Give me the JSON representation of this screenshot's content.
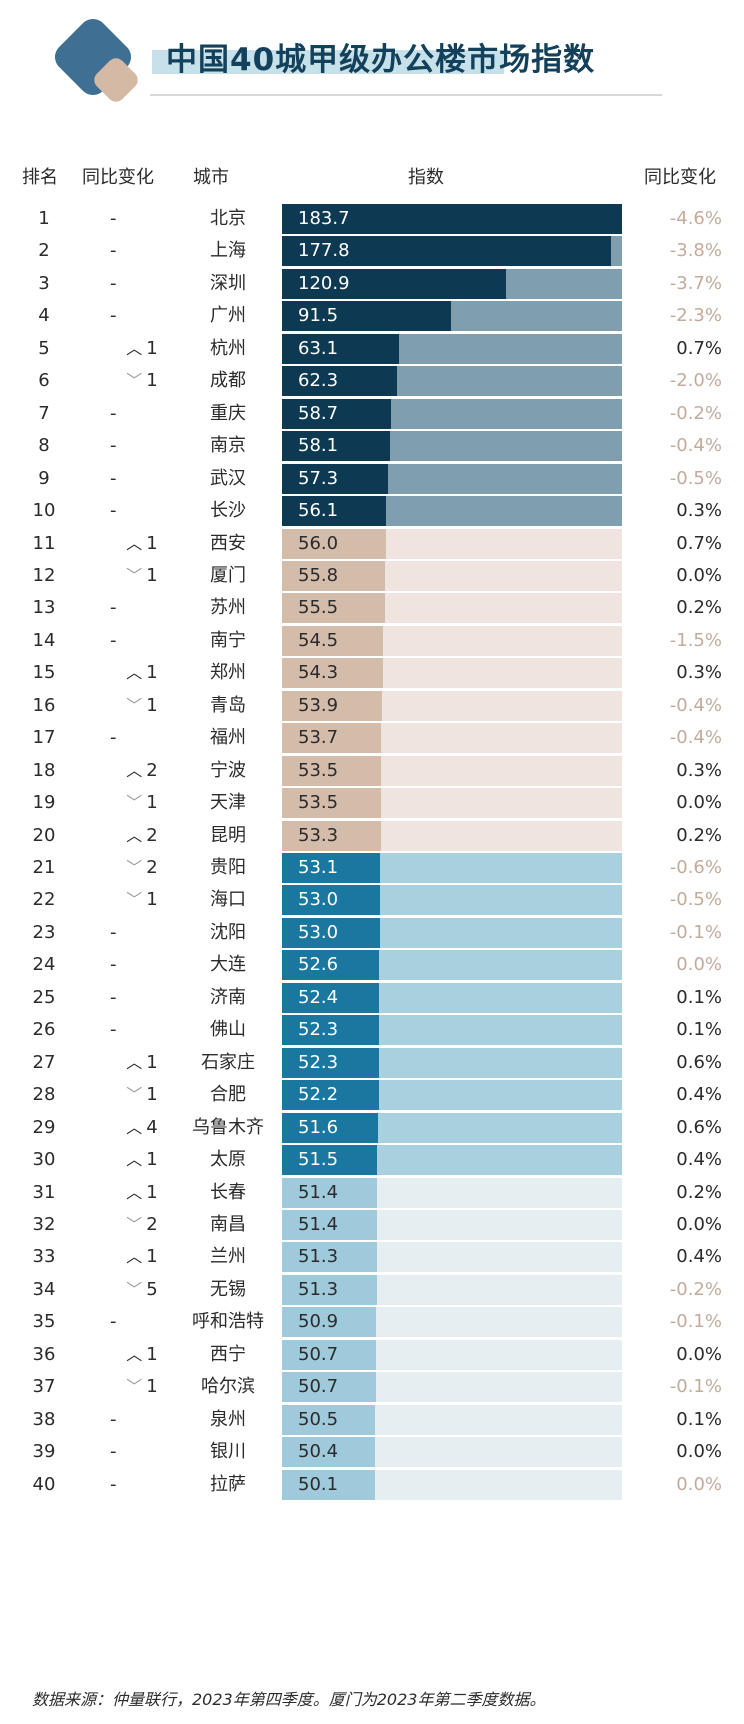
{
  "title": "中国40城甲级办公楼市场指数",
  "colors": {
    "title": "#13405a",
    "tier1_fill": "#0d3a52",
    "tier1_track": "#7f9eae",
    "tier2_fill": "#d4bcab",
    "tier2_track": "#efe4df",
    "tier3_fill": "#1a78a0",
    "tier3_track": "#a8d0de",
    "tier4_fill": "#9fcadb",
    "tier4_track": "#e6eef2",
    "negative_text": "#c3ab9c"
  },
  "headers": {
    "rank": "排名",
    "change": "同比变化",
    "city": "城市",
    "index": "指数",
    "yoy": "同比变化"
  },
  "chart_data": {
    "type": "bar",
    "xlim": [
      0,
      183.7
    ],
    "rows": [
      {
        "rank": "1",
        "change": "-",
        "city": "北京",
        "value": 183.7,
        "yoy": "-4.6%"
      },
      {
        "rank": "2",
        "change": "-",
        "city": "上海",
        "value": 177.8,
        "yoy": "-3.8%"
      },
      {
        "rank": "3",
        "change": "-",
        "city": "深圳",
        "value": 120.9,
        "yoy": "-3.7%"
      },
      {
        "rank": "4",
        "change": "-",
        "city": "广州",
        "value": 91.5,
        "yoy": "-2.3%"
      },
      {
        "rank": "5",
        "change": "1",
        "dir": "up",
        "city": "杭州",
        "value": 63.1,
        "yoy": "0.7%"
      },
      {
        "rank": "6",
        "change": "1",
        "dir": "down",
        "city": "成都",
        "value": 62.3,
        "yoy": "-2.0%"
      },
      {
        "rank": "7",
        "change": "-",
        "city": "重庆",
        "value": 58.7,
        "yoy": "-0.2%"
      },
      {
        "rank": "8",
        "change": "-",
        "city": "南京",
        "value": 58.1,
        "yoy": "-0.4%"
      },
      {
        "rank": "9",
        "change": "-",
        "city": "武汉",
        "value": 57.3,
        "yoy": "-0.5%"
      },
      {
        "rank": "10",
        "change": "-",
        "city": "长沙",
        "value": 56.1,
        "yoy": "0.3%"
      },
      {
        "rank": "11",
        "change": "1",
        "dir": "up",
        "city": "西安",
        "value": 56.0,
        "yoy": "0.7%"
      },
      {
        "rank": "12",
        "change": "1",
        "dir": "down",
        "city": "厦门",
        "value": 55.8,
        "yoy": "0.0%"
      },
      {
        "rank": "13",
        "change": "-",
        "city": "苏州",
        "value": 55.5,
        "yoy": "0.2%"
      },
      {
        "rank": "14",
        "change": "-",
        "city": "南宁",
        "value": 54.5,
        "yoy": "-1.5%"
      },
      {
        "rank": "15",
        "change": "1",
        "dir": "up",
        "city": "郑州",
        "value": 54.3,
        "yoy": "0.3%"
      },
      {
        "rank": "16",
        "change": "1",
        "dir": "down",
        "city": "青岛",
        "value": 53.9,
        "yoy": "-0.4%"
      },
      {
        "rank": "17",
        "change": "-",
        "city": "福州",
        "value": 53.7,
        "yoy": "-0.4%"
      },
      {
        "rank": "18",
        "change": "2",
        "dir": "up",
        "city": "宁波",
        "value": 53.5,
        "yoy": "0.3%"
      },
      {
        "rank": "19",
        "change": "1",
        "dir": "down",
        "city": "天津",
        "value": 53.5,
        "yoy": "0.0%"
      },
      {
        "rank": "20",
        "change": "2",
        "dir": "up",
        "city": "昆明",
        "value": 53.3,
        "yoy": "0.2%"
      },
      {
        "rank": "21",
        "change": "2",
        "dir": "down",
        "city": "贵阳",
        "value": 53.1,
        "yoy": "-0.6%"
      },
      {
        "rank": "22",
        "change": "1",
        "dir": "down",
        "city": "海口",
        "value": 53.0,
        "yoy": "-0.5%"
      },
      {
        "rank": "23",
        "change": "-",
        "city": "沈阳",
        "value": 53.0,
        "yoy": "-0.1%"
      },
      {
        "rank": "24",
        "change": "-",
        "city": "大连",
        "value": 52.6,
        "yoy": "0.0%",
        "yoy_muted": true
      },
      {
        "rank": "25",
        "change": "-",
        "city": "济南",
        "value": 52.4,
        "yoy": "0.1%"
      },
      {
        "rank": "26",
        "change": "-",
        "city": "佛山",
        "value": 52.3,
        "yoy": "0.1%"
      },
      {
        "rank": "27",
        "change": "1",
        "dir": "up",
        "city": "石家庄",
        "value": 52.3,
        "yoy": "0.6%"
      },
      {
        "rank": "28",
        "change": "1",
        "dir": "down",
        "city": "合肥",
        "value": 52.2,
        "yoy": "0.4%"
      },
      {
        "rank": "29",
        "change": "4",
        "dir": "up",
        "city": "乌鲁木齐",
        "value": 51.6,
        "yoy": "0.6%"
      },
      {
        "rank": "30",
        "change": "1",
        "dir": "up",
        "city": "太原",
        "value": 51.5,
        "yoy": "0.4%"
      },
      {
        "rank": "31",
        "change": "1",
        "dir": "up",
        "city": "长春",
        "value": 51.4,
        "yoy": "0.2%"
      },
      {
        "rank": "32",
        "change": "2",
        "dir": "down",
        "city": "南昌",
        "value": 51.4,
        "yoy": "0.0%"
      },
      {
        "rank": "33",
        "change": "1",
        "dir": "up",
        "city": "兰州",
        "value": 51.3,
        "yoy": "0.4%"
      },
      {
        "rank": "34",
        "change": "5",
        "dir": "down",
        "city": "无锡",
        "value": 51.3,
        "yoy": "-0.2%"
      },
      {
        "rank": "35",
        "change": "-",
        "city": "呼和浩特",
        "value": 50.9,
        "yoy": "-0.1%"
      },
      {
        "rank": "36",
        "change": "1",
        "dir": "up",
        "city": "西宁",
        "value": 50.7,
        "yoy": "0.0%"
      },
      {
        "rank": "37",
        "change": "1",
        "dir": "down",
        "city": "哈尔滨",
        "value": 50.7,
        "yoy": "-0.1%"
      },
      {
        "rank": "38",
        "change": "-",
        "city": "泉州",
        "value": 50.5,
        "yoy": "0.1%"
      },
      {
        "rank": "39",
        "change": "-",
        "city": "银川",
        "value": 50.4,
        "yoy": "0.0%"
      },
      {
        "rank": "40",
        "change": "-",
        "city": "拉萨",
        "value": 50.1,
        "yoy": "0.0%",
        "yoy_muted": true
      }
    ]
  },
  "footnote": "数据来源：仲量联行，2023年第四季度。厦门为2023年第二季度数据。"
}
